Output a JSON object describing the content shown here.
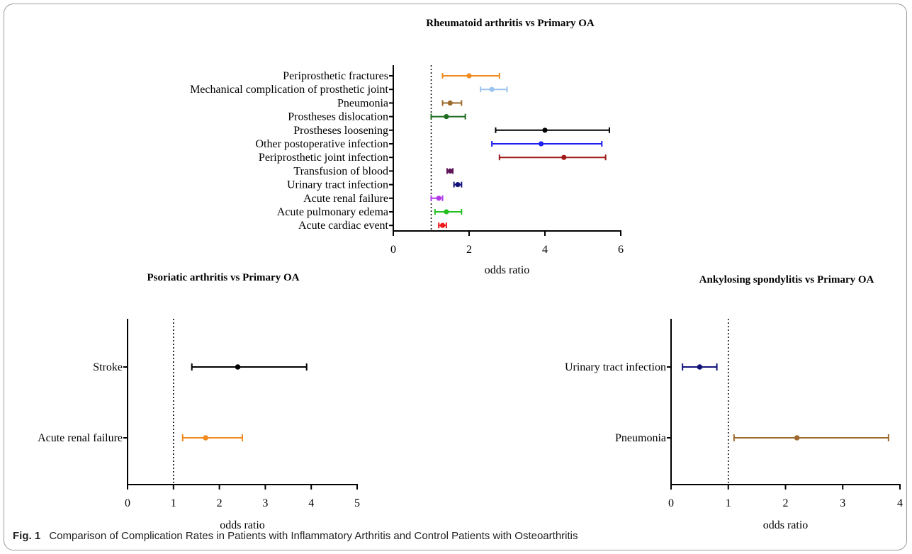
{
  "figure": {
    "caption_label": "Fig. 1",
    "caption_text": "Comparison of Complication Rates in Patients with Inflammatory Arthritis and Control Patients with Osteoarthritis"
  },
  "chart_data": [
    {
      "type": "forest",
      "title": "Rheumatoid arthritis vs Primary OA",
      "xlabel": "odds ratio",
      "xlim": [
        0,
        6
      ],
      "xticks": [
        0,
        2,
        4,
        6
      ],
      "reference_line": 1,
      "categories": [
        "Periprosthetic fractures",
        "Mechanical complication of prosthetic joint",
        "Pneumonia",
        "Prostheses dislocation",
        "Prostheses loosening",
        "Other postoperative infection",
        "Periprosthetic joint infection",
        "Transfusion of blood",
        "Urinary tract infection",
        "Acute renal failure",
        "Acute pulmonary edema",
        "Acute cardiac event"
      ],
      "points": [
        {
          "label": "Periprosthetic fractures",
          "or": 2.0,
          "lower": 1.3,
          "upper": 2.8,
          "color": "#f28a1e"
        },
        {
          "label": "Mechanical complication of prosthetic joint",
          "or": 2.6,
          "lower": 2.3,
          "upper": 3.0,
          "color": "#9cc3ee"
        },
        {
          "label": "Pneumonia",
          "or": 1.5,
          "lower": 1.3,
          "upper": 1.8,
          "color": "#9c6a2c"
        },
        {
          "label": "Prostheses dislocation",
          "or": 1.4,
          "lower": 1.0,
          "upper": 1.9,
          "color": "#1e6b1e"
        },
        {
          "label": "Prostheses loosening",
          "or": 4.0,
          "lower": 2.7,
          "upper": 5.7,
          "color": "#000000"
        },
        {
          "label": "Other postoperative infection",
          "or": 3.9,
          "lower": 2.6,
          "upper": 5.5,
          "color": "#1f1ff0"
        },
        {
          "label": "Periprosthetic joint infection",
          "or": 4.5,
          "lower": 2.8,
          "upper": 5.6,
          "color": "#a01818"
        },
        {
          "label": "Transfusion of blood",
          "or": 1.5,
          "lower": 1.42,
          "upper": 1.57,
          "color": "#5e1658"
        },
        {
          "label": "Urinary tract infection",
          "or": 1.7,
          "lower": 1.6,
          "upper": 1.8,
          "color": "#12127a"
        },
        {
          "label": "Acute renal failure",
          "or": 1.2,
          "lower": 1.0,
          "upper": 1.3,
          "color": "#b03ae8"
        },
        {
          "label": "Acute pulmonary edema",
          "or": 1.4,
          "lower": 1.1,
          "upper": 1.8,
          "color": "#22c022"
        },
        {
          "label": "Acute cardiac event",
          "or": 1.3,
          "lower": 1.2,
          "upper": 1.4,
          "color": "#f01818"
        }
      ]
    },
    {
      "type": "forest",
      "title": "Psoriatic arthritis vs Primary OA",
      "xlabel": "odds ratio",
      "xlim": [
        0,
        5
      ],
      "xticks": [
        0,
        1,
        2,
        3,
        4,
        5
      ],
      "reference_line": 1,
      "categories": [
        "Stroke",
        "Acute renal failure"
      ],
      "points": [
        {
          "label": "Stroke",
          "or": 2.4,
          "lower": 1.4,
          "upper": 3.9,
          "color": "#000000"
        },
        {
          "label": "Acute renal failure",
          "or": 1.7,
          "lower": 1.2,
          "upper": 2.5,
          "color": "#f28a1e"
        }
      ]
    },
    {
      "type": "forest",
      "title": "Ankylosing spondylitis vs Primary OA",
      "xlabel": "odds ratio",
      "xlim": [
        0,
        4
      ],
      "xticks": [
        0,
        1,
        2,
        3,
        4
      ],
      "reference_line": 1,
      "categories": [
        "Urinary tract infection",
        "Pneumonia"
      ],
      "points": [
        {
          "label": "Urinary tract infection",
          "or": 0.5,
          "lower": 0.2,
          "upper": 0.8,
          "color": "#12127a"
        },
        {
          "label": "Pneumonia",
          "or": 2.2,
          "lower": 1.1,
          "upper": 3.8,
          "color": "#9c6a2c"
        }
      ]
    }
  ]
}
